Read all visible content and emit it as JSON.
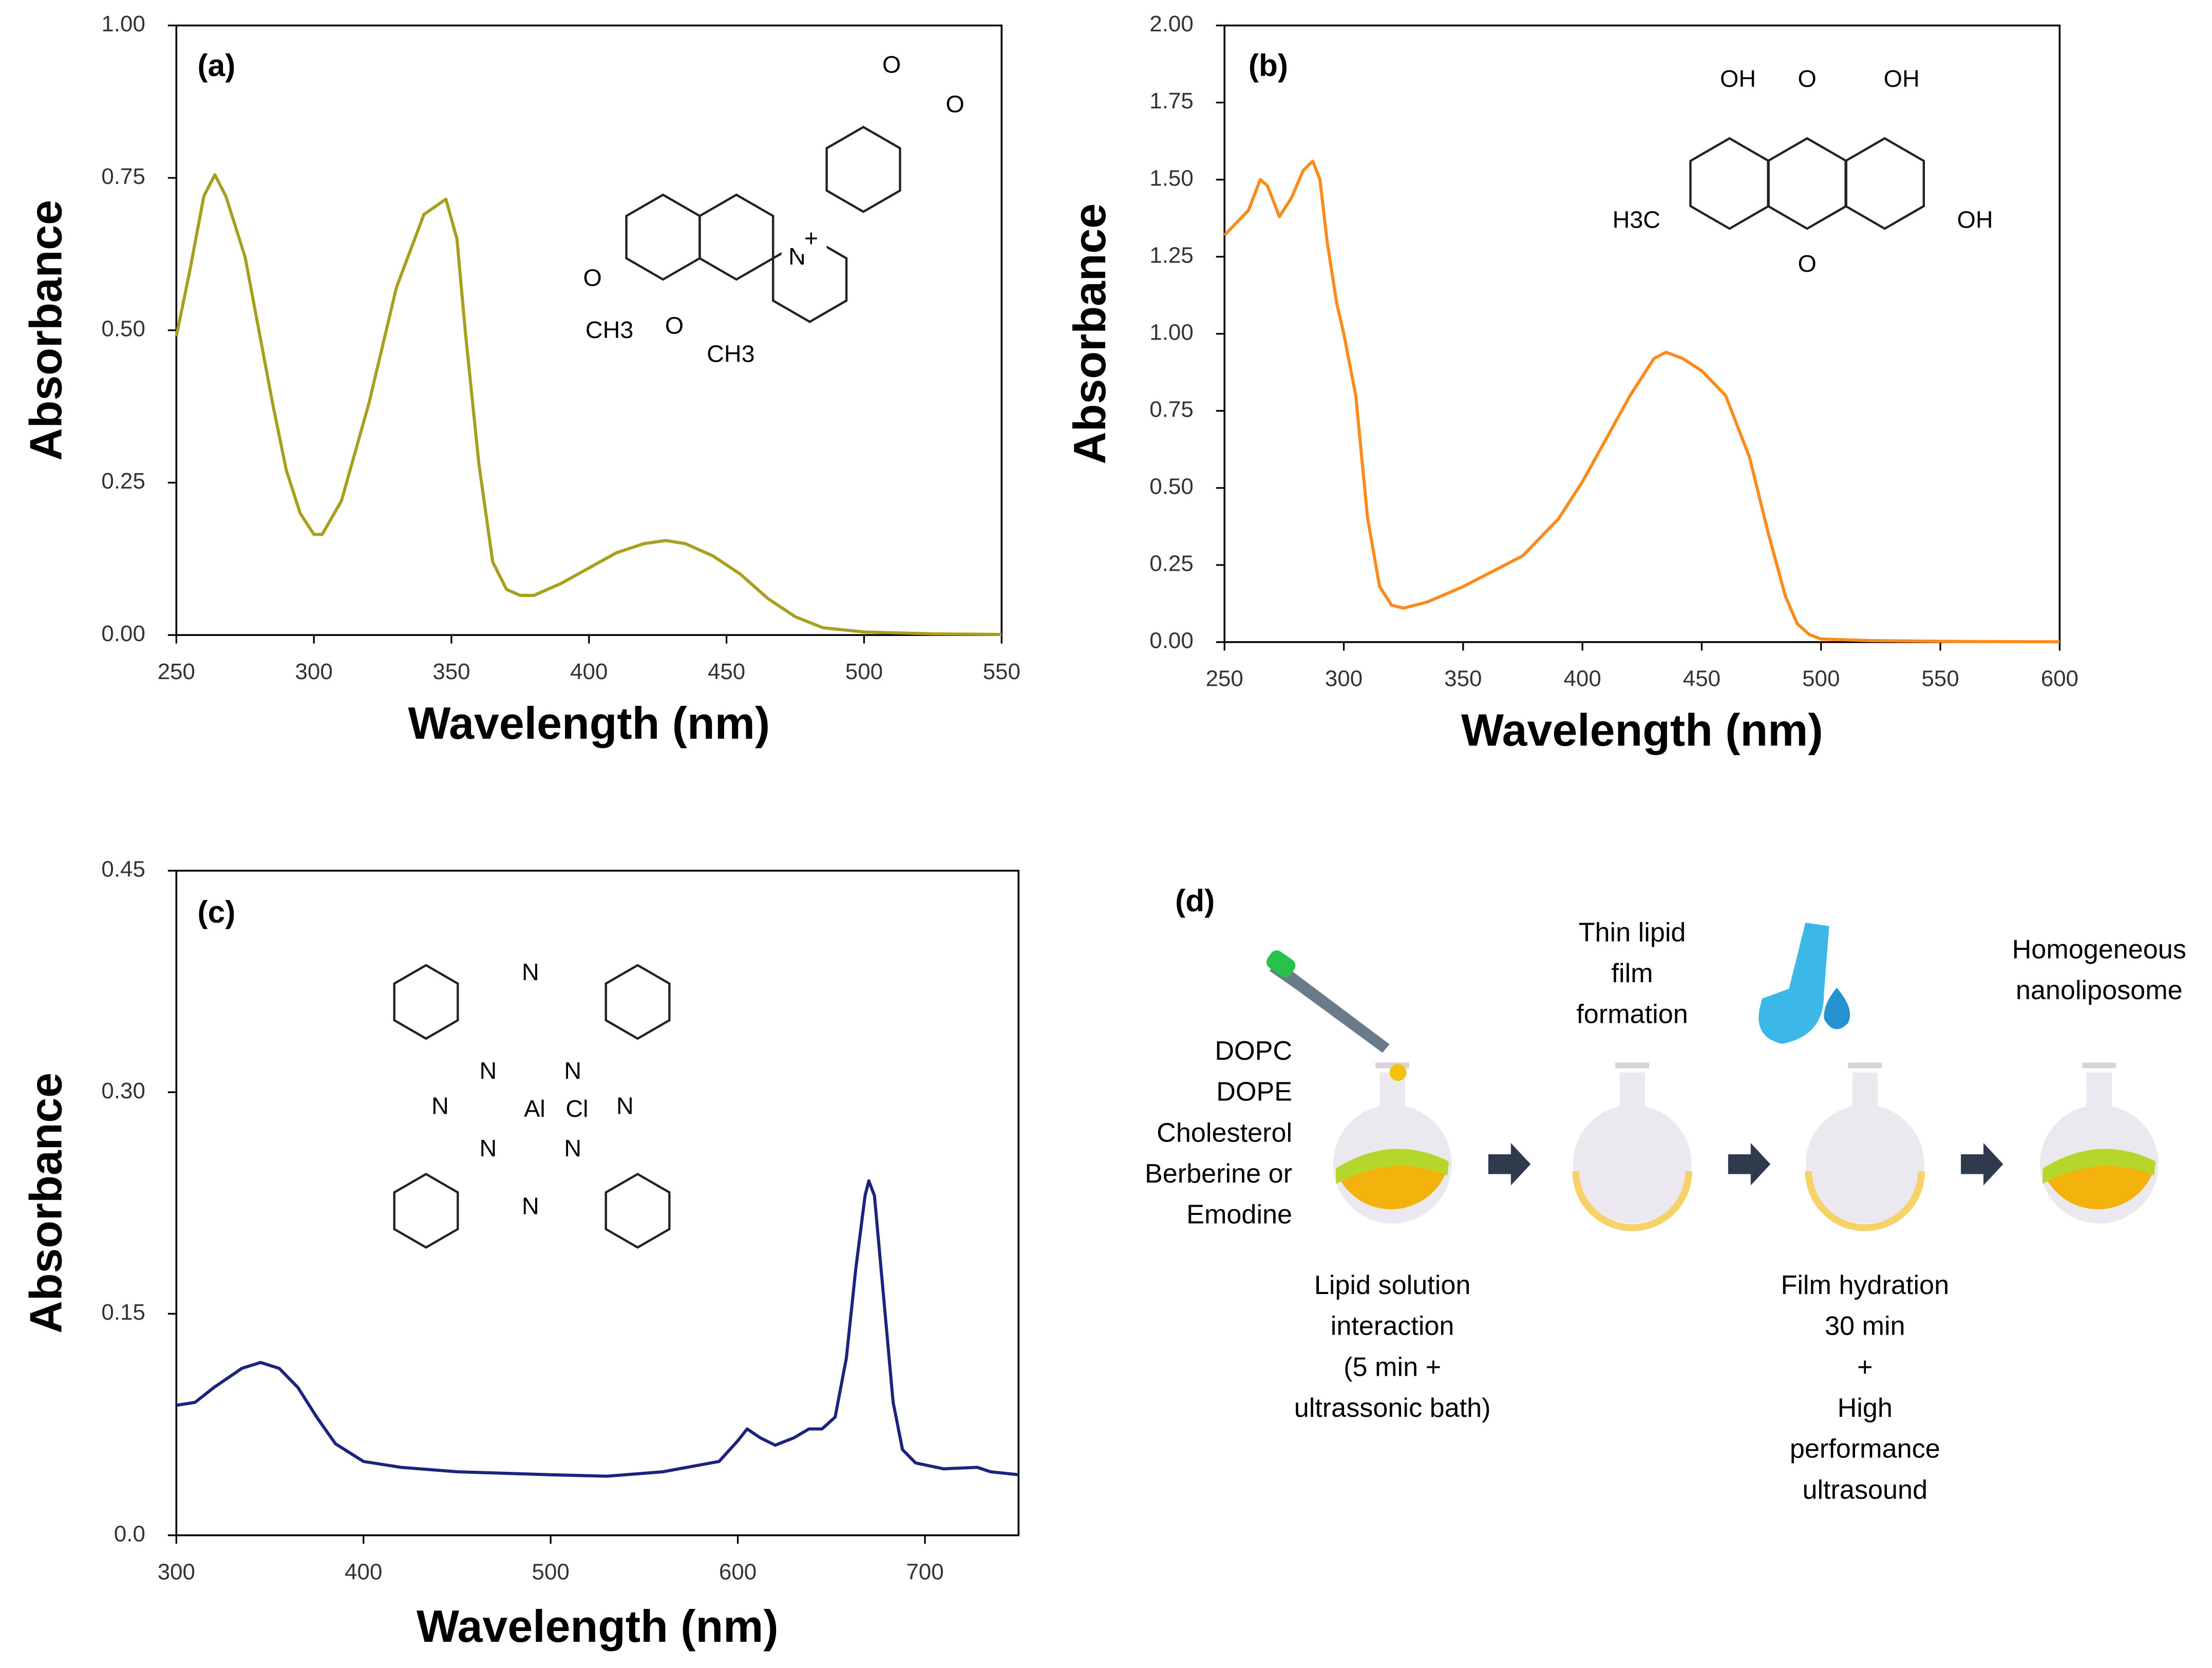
{
  "chart_data": [
    {
      "type": "line",
      "title": "(a)",
      "x_label": "Wavelength (nm)",
      "y_label": "Absorbance",
      "color": "#a89f1e",
      "xlim": [
        250,
        550
      ],
      "xticks": [
        250,
        300,
        350,
        400,
        450,
        500,
        550
      ],
      "ylim": [
        0,
        1
      ],
      "yticks": [
        {
          "value": 0,
          "label": "0.00"
        },
        0.25,
        {
          "value": 0.5,
          "label": "0.50"
        },
        0.75,
        {
          "value": 1,
          "label": "1.00"
        }
      ],
      "x": [
        250,
        255,
        260,
        264,
        268,
        275,
        280,
        285,
        290,
        295,
        300,
        303,
        310,
        320,
        330,
        340,
        348,
        352,
        355,
        360,
        365,
        370,
        375,
        380,
        390,
        400,
        410,
        420,
        428,
        435,
        445,
        455,
        465,
        475,
        485,
        500,
        525,
        550
      ],
      "values": [
        0.49,
        0.6,
        0.72,
        0.755,
        0.72,
        0.62,
        0.5,
        0.38,
        0.27,
        0.2,
        0.165,
        0.165,
        0.22,
        0.38,
        0.57,
        0.69,
        0.715,
        0.65,
        0.5,
        0.28,
        0.12,
        0.075,
        0.065,
        0.065,
        0.085,
        0.11,
        0.135,
        0.15,
        0.155,
        0.15,
        0.13,
        0.1,
        0.06,
        0.03,
        0.012,
        0.005,
        0.002,
        0.001
      ],
      "annotations": [
        "O",
        "O",
        "N",
        "+",
        "O",
        "CH3",
        "O",
        "CH3"
      ]
    },
    {
      "type": "line",
      "title": "(b)",
      "x_label": "Wavelength (nm)",
      "y_label": "Absorbance",
      "color": "#ff8a1c",
      "xlim": [
        250,
        600
      ],
      "xticks": [
        250,
        300,
        350,
        400,
        450,
        500,
        550,
        600
      ],
      "ylim": [
        0,
        2
      ],
      "yticks": [
        {
          "value": 0,
          "label": "0.00"
        },
        0.25,
        {
          "value": 0.5,
          "label": "0.50"
        },
        0.75,
        {
          "value": 1,
          "label": "1.00"
        },
        1.25,
        {
          "value": 1.5,
          "label": "1.50"
        },
        1.75,
        {
          "value": 2,
          "label": "2.00"
        }
      ],
      "x": [
        250,
        255,
        260,
        265,
        268,
        273,
        278,
        283,
        287,
        290,
        293,
        297,
        300,
        305,
        310,
        315,
        320,
        325,
        335,
        350,
        365,
        375,
        390,
        400,
        410,
        420,
        430,
        435,
        442,
        450,
        460,
        470,
        478,
        485,
        490,
        495,
        500,
        520,
        560,
        600
      ],
      "values": [
        1.32,
        1.36,
        1.4,
        1.5,
        1.48,
        1.38,
        1.44,
        1.53,
        1.56,
        1.5,
        1.3,
        1.1,
        1.0,
        0.8,
        0.4,
        0.18,
        0.12,
        0.11,
        0.13,
        0.18,
        0.24,
        0.28,
        0.4,
        0.52,
        0.66,
        0.8,
        0.92,
        0.94,
        0.92,
        0.88,
        0.8,
        0.6,
        0.35,
        0.15,
        0.06,
        0.025,
        0.01,
        0.005,
        0.002,
        0.001
      ],
      "annotations": [
        "OH",
        "O",
        "OH",
        "H3C",
        "O",
        "OH"
      ]
    },
    {
      "type": "line",
      "title": "(c)",
      "x_label": "Wavelength (nm)",
      "y_label": "Absorbance",
      "color": "#1b237c",
      "xlim": [
        300,
        750
      ],
      "xticks": [
        300,
        400,
        500,
        600,
        700
      ],
      "ylim": [
        0,
        0.45
      ],
      "yticks": [
        {
          "value": 0,
          "label": "0.0"
        },
        0.15,
        {
          "value": 0.3,
          "label": "0.30"
        },
        0.45
      ],
      "x": [
        300,
        310,
        320,
        335,
        345,
        355,
        365,
        375,
        385,
        400,
        420,
        450,
        500,
        530,
        560,
        590,
        600,
        605,
        612,
        620,
        630,
        638,
        645,
        652,
        658,
        663,
        668,
        670,
        673,
        678,
        683,
        688,
        695,
        710,
        728,
        735,
        750
      ],
      "values": [
        0.088,
        0.09,
        0.1,
        0.113,
        0.117,
        0.113,
        0.1,
        0.08,
        0.062,
        0.05,
        0.046,
        0.043,
        0.041,
        0.04,
        0.043,
        0.05,
        0.064,
        0.072,
        0.066,
        0.061,
        0.066,
        0.072,
        0.072,
        0.08,
        0.12,
        0.18,
        0.23,
        0.24,
        0.23,
        0.16,
        0.09,
        0.058,
        0.049,
        0.045,
        0.046,
        0.043,
        0.041
      ],
      "annotations": [
        "N",
        "N",
        "N",
        "N",
        "N",
        "N",
        "N",
        "N",
        "Al",
        "Cl"
      ]
    }
  ],
  "diagram": {
    "label": "(d)",
    "components": [
      "DOPC",
      "DOPE",
      "Cholesterol",
      "Berberine or",
      "Emodine"
    ],
    "steps": [
      {
        "top": [],
        "bottom": [
          "Lipid solution",
          "interaction",
          "(5 min +",
          "ultrassonic bath)"
        ]
      },
      {
        "top": [
          "Thin lipid",
          "film",
          "formation"
        ],
        "bottom": []
      },
      {
        "top": [],
        "bottom": [
          "Film hydration",
          "30 min",
          "+",
          "High",
          "performance",
          "ultrasound"
        ]
      },
      {
        "top": [
          "Homogeneous",
          "nanoliposome"
        ],
        "bottom": []
      }
    ]
  }
}
